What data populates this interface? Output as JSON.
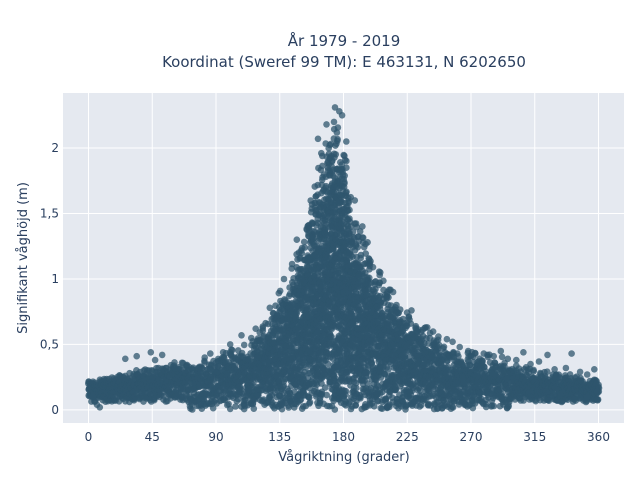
{
  "chart_data": {
    "type": "scatter",
    "title": "År 1979 - 2019",
    "subtitle": "Koordinat (Sweref 99 TM): E 463131, N 6202650",
    "xlabel": "Vågriktning (grader)",
    "ylabel": "Signifikant våghöjd (m)",
    "xlim": [
      -18,
      378
    ],
    "ylim": [
      -0.1,
      2.42
    ],
    "x_ticks": [
      0,
      45,
      90,
      135,
      180,
      225,
      270,
      315,
      360
    ],
    "x_tick_labels": [
      "0",
      "45",
      "90",
      "135",
      "180",
      "225",
      "270",
      "315",
      "360"
    ],
    "y_ticks": [
      0,
      0.5,
      1,
      1.5,
      2
    ],
    "y_tick_labels": [
      "0",
      "0,5",
      "1",
      "1,5",
      "2"
    ],
    "grid": true,
    "legend": "none",
    "background_color": "#e5e9f0",
    "marker_color": "#2f566d",
    "envelope": {
      "x": [
        0,
        10,
        20,
        30,
        40,
        50,
        60,
        70,
        80,
        90,
        100,
        110,
        120,
        130,
        140,
        150,
        155,
        160,
        165,
        170,
        175,
        180,
        185,
        190,
        200,
        210,
        220,
        230,
        240,
        250,
        260,
        270,
        280,
        290,
        300,
        315,
        330,
        345,
        360
      ],
      "y_max": [
        0.24,
        0.25,
        0.27,
        0.3,
        0.33,
        0.36,
        0.38,
        0.38,
        0.4,
        0.42,
        0.48,
        0.55,
        0.64,
        0.82,
        1.05,
        1.35,
        1.62,
        1.85,
        2.05,
        2.18,
        2.3,
        2.15,
        1.78,
        1.5,
        1.2,
        1.0,
        0.86,
        0.74,
        0.64,
        0.55,
        0.5,
        0.47,
        0.44,
        0.42,
        0.37,
        0.33,
        0.3,
        0.27,
        0.24
      ]
    },
    "outliers": [
      [
        3,
        0.1
      ],
      [
        8,
        0.02
      ],
      [
        18,
        0.24
      ],
      [
        22,
        0.26
      ],
      [
        26,
        0.39
      ],
      [
        29,
        0.28
      ],
      [
        34,
        0.41
      ],
      [
        39,
        0.3
      ],
      [
        44,
        0.44
      ],
      [
        47,
        0.38
      ],
      [
        52,
        0.42
      ],
      [
        55,
        0.32
      ],
      [
        61,
        0.32
      ],
      [
        66,
        0.36
      ],
      [
        72,
        0.01
      ],
      [
        78,
        0.32
      ],
      [
        82,
        0.4
      ],
      [
        86,
        0.43
      ],
      [
        95,
        0.44
      ],
      [
        100,
        0.5
      ],
      [
        108,
        0.57
      ],
      [
        118,
        0.62
      ],
      [
        128,
        0.78
      ],
      [
        138,
        1.0
      ],
      [
        147,
        1.3
      ],
      [
        162,
        2.07
      ],
      [
        168,
        2.18
      ],
      [
        174,
        2.31
      ],
      [
        177,
        2.28
      ],
      [
        179,
        2.25
      ],
      [
        182,
        2.05
      ],
      [
        188,
        1.6
      ],
      [
        197,
        1.28
      ],
      [
        206,
        1.05
      ],
      [
        215,
        0.9
      ],
      [
        228,
        0.76
      ],
      [
        238,
        0.63
      ],
      [
        247,
        0.56
      ],
      [
        253,
        0.54
      ],
      [
        257,
        0.52
      ],
      [
        262,
        0.48
      ],
      [
        268,
        0.45
      ],
      [
        273,
        0.43
      ],
      [
        279,
        0.43
      ],
      [
        286,
        0.41
      ],
      [
        291,
        0.45
      ],
      [
        296,
        0.39
      ],
      [
        302,
        0.38
      ],
      [
        307,
        0.44
      ],
      [
        312,
        0.35
      ],
      [
        318,
        0.37
      ],
      [
        324,
        0.42
      ],
      [
        329,
        0.31
      ],
      [
        337,
        0.32
      ],
      [
        341,
        0.43
      ],
      [
        347,
        0.29
      ],
      [
        352,
        0.27
      ],
      [
        357,
        0.31
      ],
      [
        359,
        0.14
      ],
      [
        352,
        0.1
      ],
      [
        343,
        0.08
      ],
      [
        334,
        0.06
      ],
      [
        325,
        0.07
      ],
      [
        6,
        0.04
      ]
    ]
  }
}
